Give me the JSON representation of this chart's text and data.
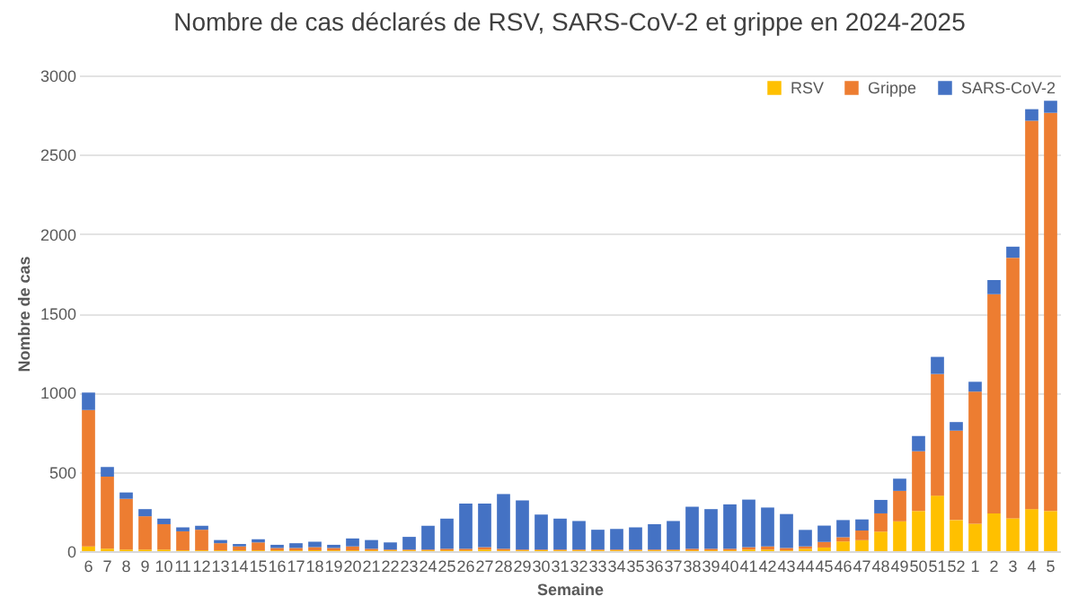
{
  "chart_data": {
    "type": "bar",
    "title": "Nombre de cas déclarés de RSV, SARS-CoV-2 et grippe en 2024-2025",
    "xlabel": "Semaine",
    "ylabel": "Nombre de cas",
    "stacked": true,
    "legend": "top right",
    "grid": "y",
    "ylim": [
      0,
      3000
    ],
    "yticks": [
      0,
      500,
      1000,
      1500,
      2000,
      2500,
      3000
    ],
    "categories": [
      "6",
      "7",
      "8",
      "9",
      "10",
      "11",
      "12",
      "13",
      "14",
      "15",
      "16",
      "17",
      "18",
      "19",
      "20",
      "21",
      "22",
      "23",
      "24",
      "25",
      "26",
      "27",
      "28",
      "29",
      "30",
      "31",
      "32",
      "33",
      "34",
      "35",
      "36",
      "37",
      "38",
      "39",
      "40",
      "41",
      "42",
      "43",
      "44",
      "45",
      "46",
      "47",
      "48",
      "49",
      "50",
      "51",
      "52",
      "1",
      "2",
      "3",
      "4",
      "5"
    ],
    "series": [
      {
        "name": "RSV",
        "color": "#ffc000",
        "values": [
          30,
          15,
          10,
          10,
          10,
          5,
          5,
          5,
          5,
          5,
          5,
          5,
          5,
          5,
          5,
          5,
          5,
          5,
          5,
          5,
          5,
          10,
          5,
          5,
          5,
          5,
          5,
          5,
          5,
          5,
          5,
          5,
          5,
          5,
          5,
          10,
          10,
          5,
          15,
          23,
          61,
          69,
          123,
          188,
          253,
          350,
          196,
          173,
          238,
          207,
          265,
          253
        ]
      },
      {
        "name": "Grippe",
        "color": "#ed7d31",
        "values": [
          860,
          455,
          320,
          210,
          160,
          120,
          130,
          45,
          25,
          50,
          15,
          15,
          20,
          15,
          25,
          10,
          5,
          5,
          5,
          10,
          10,
          15,
          10,
          5,
          5,
          5,
          5,
          5,
          5,
          5,
          5,
          5,
          10,
          10,
          10,
          15,
          20,
          15,
          15,
          35,
          27,
          61,
          115,
          192,
          377,
          767,
          564,
          833,
          1382,
          1643,
          2449,
          2511
        ]
      },
      {
        "name": "SARS-CoV-2",
        "color": "#4472c4",
        "values": [
          110,
          60,
          40,
          45,
          35,
          25,
          25,
          20,
          15,
          20,
          20,
          30,
          35,
          20,
          50,
          55,
          45,
          80,
          150,
          190,
          285,
          275,
          345,
          310,
          220,
          195,
          180,
          125,
          130,
          140,
          160,
          180,
          265,
          250,
          280,
          300,
          245,
          214,
          104,
          103,
          108,
          70,
          85,
          77,
          96,
          108,
          54,
          62,
          90,
          70,
          73,
          76
        ]
      }
    ]
  }
}
